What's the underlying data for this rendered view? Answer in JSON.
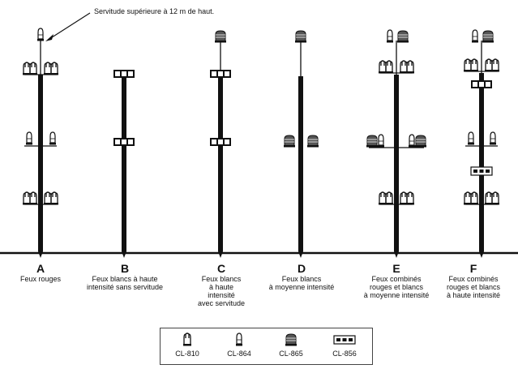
{
  "note": "Servitude supérieure à 12 m de haut.",
  "towers": [
    {
      "letter": "A",
      "desc": [
        "Feux rouges"
      ]
    },
    {
      "letter": "B",
      "desc": [
        "Feux blancs à haute",
        "intensité sans servitude"
      ]
    },
    {
      "letter": "C",
      "desc": [
        "Feux blancs",
        "à haute",
        "intensité",
        "avec servitude"
      ]
    },
    {
      "letter": "D",
      "desc": [
        "Feux blancs",
        "à moyenne intensité"
      ]
    },
    {
      "letter": "E",
      "desc": [
        "Feux combinés",
        "rouges et blancs",
        "à moyenne intensité"
      ]
    },
    {
      "letter": "F",
      "desc": [
        "Feux combinés",
        "rouges et blancs",
        "à haute intensité"
      ]
    }
  ],
  "legend": [
    {
      "icon": "cl-810-light-icon",
      "label": "CL-810"
    },
    {
      "icon": "cl-864-light-icon",
      "label": "CL-864"
    },
    {
      "icon": "cl-865-light-icon",
      "label": "CL-865"
    },
    {
      "icon": "cl-856-light-icon",
      "label": "CL-856"
    }
  ],
  "colors": {
    "ink": "#111111",
    "fill_light": "#ffffff"
  }
}
